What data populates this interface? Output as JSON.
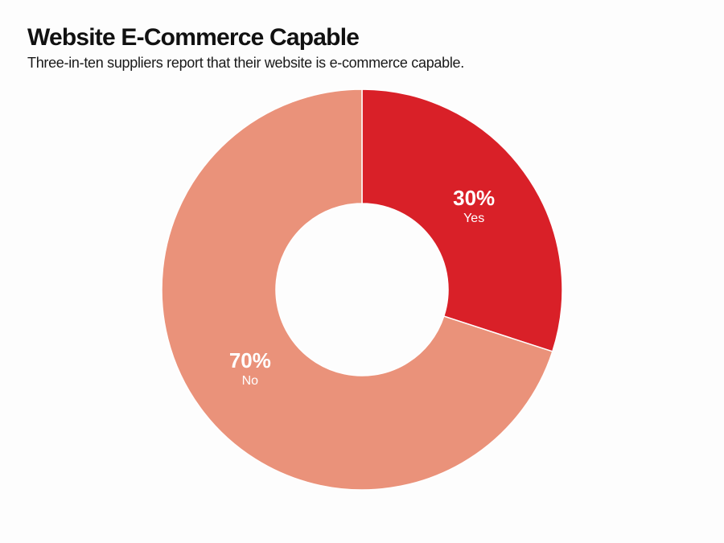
{
  "chart_data": {
    "type": "pie",
    "variant": "donut",
    "title": "Website E-Commerce Capable",
    "subtitle": "Three-in-ten suppliers report that their website is e-commerce capable.",
    "unit": "%",
    "slices": [
      {
        "name": "Yes",
        "value": 30,
        "label": "30%",
        "color": "#d92028"
      },
      {
        "name": "No",
        "value": 70,
        "label": "70%",
        "color": "#ea927a"
      }
    ],
    "start_angle_deg": 0,
    "direction": "clockwise",
    "legend": "none"
  }
}
